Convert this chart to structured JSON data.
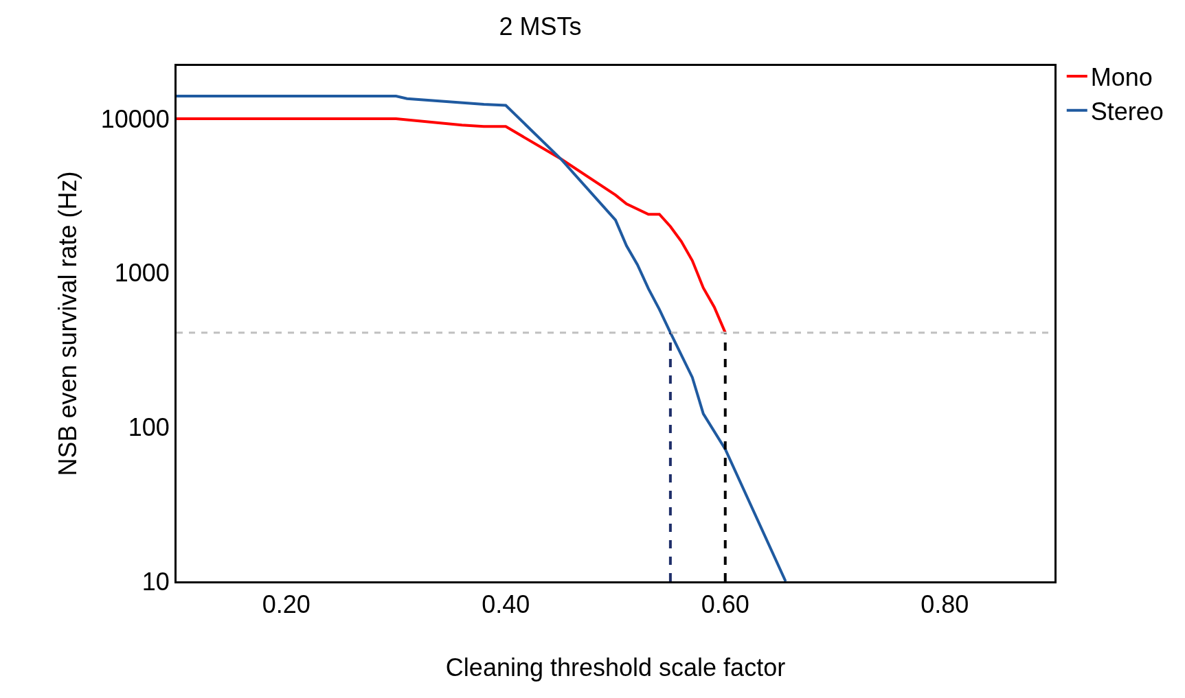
{
  "chart_data": {
    "type": "line",
    "title": "2 MSTs",
    "xlabel": "Cleaning threshold scale factor",
    "ylabel": "NSB even survival rate (Hz)",
    "log": "y",
    "grid": false,
    "legend": "top right",
    "xlim": [
      0.1,
      0.9
    ],
    "xticks": [
      {
        "value": 0.2,
        "label": "0.20"
      },
      {
        "value": 0.4,
        "label": "0.40"
      },
      {
        "value": 0.6,
        "label": "0.60"
      },
      {
        "value": 0.8,
        "label": "0.80"
      }
    ],
    "ylim": [
      10,
      22000
    ],
    "yticks": [
      10,
      100,
      1000,
      10000
    ],
    "series": [
      {
        "name": "Mono",
        "color": "#ff0000",
        "x": [
          0.1,
          0.3,
          0.36,
          0.38,
          0.4,
          0.45,
          0.5,
          0.51,
          0.53,
          0.54,
          0.55,
          0.56,
          0.57,
          0.58,
          0.59,
          0.6
        ],
        "values": [
          10000,
          10000,
          9100,
          8900,
          8900,
          5500,
          3200,
          2800,
          2400,
          2400,
          2000,
          1600,
          1200,
          800,
          600,
          410
        ]
      },
      {
        "name": "Stereo",
        "color": "#1f5aa0",
        "x": [
          0.1,
          0.3,
          0.31,
          0.38,
          0.4,
          0.45,
          0.5,
          0.51,
          0.52,
          0.53,
          0.54,
          0.55,
          0.57,
          0.58,
          0.6,
          0.655
        ],
        "values": [
          14000,
          14000,
          13500,
          12400,
          12200,
          5500,
          2200,
          1500,
          1130,
          790,
          580,
          410,
          210,
          122,
          72,
          10
        ]
      },
      {
        "color": "#1f2f6a",
        "line_style": "dashed",
        "x": [
          0.55,
          0.55
        ],
        "values": [
          10,
          410
        ]
      },
      {
        "color": "#000000",
        "line_style": "dashed",
        "x": [
          0.6,
          0.6
        ],
        "values": [
          10,
          410
        ]
      }
    ],
    "ref_lines": [
      {
        "axis": "y",
        "value": 410,
        "color": "#c0c0c0",
        "line_style": "dashed"
      }
    ]
  }
}
